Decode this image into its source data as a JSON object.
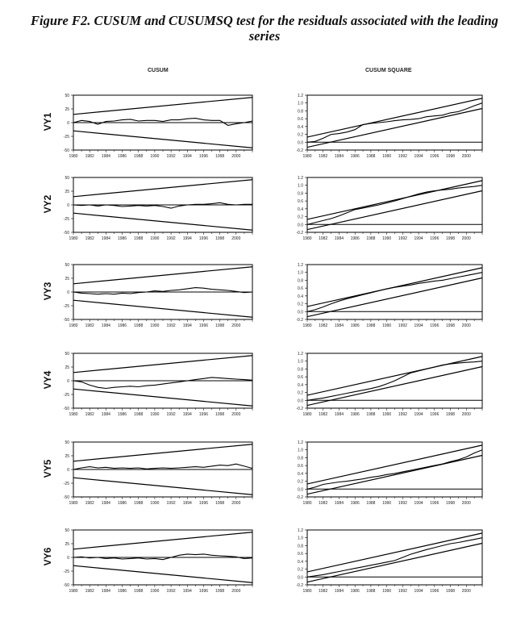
{
  "title": "Figure F2. CUSUM and CUSUMSQ test for the residuals associated with the leading series",
  "columns": {
    "left": "CUSUM",
    "right": "CUSUM SQUARE"
  },
  "chart_data": [
    {
      "type": "line",
      "panel": "CUSUM",
      "row_label": "VY1",
      "x_start": 1980,
      "x_end": 2002,
      "xticks": [
        1980,
        1982,
        1984,
        1986,
        1988,
        1990,
        1992,
        1994,
        1996,
        1998,
        2000
      ],
      "ylim": [
        -50,
        50
      ],
      "yticks": [
        -50,
        -25,
        0,
        25,
        50
      ],
      "bands": {
        "upper": [
          15,
          46
        ],
        "lower": [
          -15,
          -46
        ]
      },
      "values": [
        0,
        4,
        2,
        -3,
        2,
        3,
        5,
        6,
        3,
        4,
        4,
        2,
        5,
        5,
        7,
        8,
        5,
        4,
        4,
        -5,
        -2,
        0,
        3
      ]
    },
    {
      "type": "line",
      "panel": "CUSUM SQUARE",
      "row_label": "VY1",
      "x_start": 1980,
      "x_end": 2002,
      "xticks": [
        1980,
        1982,
        1984,
        1986,
        1988,
        1990,
        1992,
        1994,
        1996,
        1998,
        2000
      ],
      "ylim": [
        -0.2,
        1.2
      ],
      "yticks": [
        -0.2,
        0.0,
        0.2,
        0.4,
        0.6,
        0.8,
        1.0,
        1.2
      ],
      "bands": {
        "upper": [
          0.13,
          1.12
        ],
        "lower": [
          -0.13,
          0.86
        ]
      },
      "values": [
        0,
        0.02,
        0.1,
        0.2,
        0.22,
        0.26,
        0.32,
        0.45,
        0.48,
        0.5,
        0.52,
        0.55,
        0.57,
        0.58,
        0.6,
        0.65,
        0.67,
        0.69,
        0.75,
        0.78,
        0.85,
        0.93,
        1.0
      ]
    },
    {
      "type": "line",
      "panel": "CUSUM",
      "row_label": "VY2",
      "x_start": 1980,
      "x_end": 2002,
      "xticks": [
        1980,
        1982,
        1984,
        1986,
        1988,
        1990,
        1992,
        1994,
        1996,
        1998,
        2000
      ],
      "ylim": [
        -50,
        50
      ],
      "yticks": [
        -50,
        -25,
        0,
        25,
        50
      ],
      "bands": {
        "upper": [
          15,
          46
        ],
        "lower": [
          -15,
          -46
        ]
      },
      "values": [
        0,
        -1,
        0,
        -2,
        0,
        -1,
        -3,
        -2,
        -1,
        -2,
        -1,
        -3,
        -6,
        -2,
        0,
        1,
        1,
        2,
        4,
        1,
        0,
        1,
        1
      ]
    },
    {
      "type": "line",
      "panel": "CUSUM SQUARE",
      "row_label": "VY2",
      "x_start": 1980,
      "x_end": 2002,
      "xticks": [
        1980,
        1982,
        1984,
        1986,
        1988,
        1990,
        1992,
        1994,
        1996,
        1998,
        2000
      ],
      "ylim": [
        -0.2,
        1.2
      ],
      "yticks": [
        -0.2,
        0.0,
        0.2,
        0.4,
        0.6,
        0.8,
        1.0,
        1.2
      ],
      "bands": {
        "upper": [
          0.13,
          1.12
        ],
        "lower": [
          -0.13,
          0.86
        ]
      },
      "values": [
        0,
        0.05,
        0.1,
        0.15,
        0.22,
        0.3,
        0.38,
        0.42,
        0.46,
        0.5,
        0.55,
        0.6,
        0.66,
        0.72,
        0.78,
        0.83,
        0.86,
        0.88,
        0.9,
        0.93,
        0.95,
        0.97,
        1.0
      ]
    },
    {
      "type": "line",
      "panel": "CUSUM",
      "row_label": "VY3",
      "x_start": 1980,
      "x_end": 2002,
      "xticks": [
        1980,
        1982,
        1984,
        1986,
        1988,
        1990,
        1992,
        1994,
        1996,
        1998,
        2000
      ],
      "ylim": [
        -50,
        50
      ],
      "yticks": [
        -50,
        -25,
        0,
        25,
        50
      ],
      "bands": {
        "upper": [
          15,
          46
        ],
        "lower": [
          -15,
          -46
        ]
      },
      "values": [
        0,
        -2,
        -3,
        -4,
        -3,
        -4,
        -2,
        -3,
        -1,
        0,
        2,
        1,
        3,
        4,
        6,
        8,
        7,
        5,
        4,
        3,
        1,
        -1,
        0
      ]
    },
    {
      "type": "line",
      "panel": "CUSUM SQUARE",
      "row_label": "VY3",
      "x_start": 1980,
      "x_end": 2002,
      "xticks": [
        1980,
        1982,
        1984,
        1986,
        1988,
        1990,
        1992,
        1994,
        1996,
        1998,
        2000
      ],
      "ylim": [
        -0.2,
        1.2
      ],
      "yticks": [
        -0.2,
        0.0,
        0.2,
        0.4,
        0.6,
        0.8,
        1.0,
        1.2
      ],
      "bands": {
        "upper": [
          0.13,
          1.12
        ],
        "lower": [
          -0.13,
          0.86
        ]
      },
      "values": [
        0,
        0.05,
        0.12,
        0.2,
        0.27,
        0.33,
        0.38,
        0.43,
        0.48,
        0.53,
        0.58,
        0.62,
        0.65,
        0.68,
        0.72,
        0.75,
        0.78,
        0.8,
        0.84,
        0.88,
        0.92,
        0.96,
        1.0
      ]
    },
    {
      "type": "line",
      "panel": "CUSUM",
      "row_label": "VY4",
      "x_start": 1980,
      "x_end": 2002,
      "xticks": [
        1980,
        1982,
        1984,
        1986,
        1988,
        1990,
        1992,
        1994,
        1996,
        1998,
        2000
      ],
      "ylim": [
        -50,
        50
      ],
      "yticks": [
        -50,
        -25,
        0,
        25,
        50
      ],
      "bands": {
        "upper": [
          15,
          46
        ],
        "lower": [
          -15,
          -46
        ]
      },
      "values": [
        0,
        -2,
        -8,
        -12,
        -14,
        -12,
        -11,
        -10,
        -11,
        -9,
        -8,
        -6,
        -4,
        -2,
        0,
        2,
        4,
        6,
        5,
        4,
        3,
        2,
        1
      ]
    },
    {
      "type": "line",
      "panel": "CUSUM SQUARE",
      "row_label": "VY4",
      "x_start": 1980,
      "x_end": 2002,
      "xticks": [
        1980,
        1982,
        1984,
        1986,
        1988,
        1990,
        1992,
        1994,
        1996,
        1998,
        2000
      ],
      "ylim": [
        -0.2,
        1.2
      ],
      "yticks": [
        -0.2,
        0.0,
        0.2,
        0.4,
        0.6,
        0.8,
        1.0,
        1.2
      ],
      "bands": {
        "upper": [
          0.13,
          1.12
        ],
        "lower": [
          -0.13,
          0.86
        ]
      },
      "values": [
        0,
        0.03,
        0.06,
        0.1,
        0.14,
        0.18,
        0.22,
        0.26,
        0.3,
        0.35,
        0.42,
        0.5,
        0.6,
        0.7,
        0.75,
        0.8,
        0.85,
        0.9,
        0.93,
        0.95,
        0.97,
        0.98,
        1.0
      ]
    },
    {
      "type": "line",
      "panel": "CUSUM",
      "row_label": "VY5",
      "x_start": 1980,
      "x_end": 2002,
      "xticks": [
        1980,
        1982,
        1984,
        1986,
        1988,
        1990,
        1992,
        1994,
        1996,
        1998,
        2000
      ],
      "ylim": [
        -50,
        50
      ],
      "yticks": [
        -50,
        -25,
        0,
        25,
        50
      ],
      "bands": {
        "upper": [
          15,
          46
        ],
        "lower": [
          -15,
          -46
        ]
      },
      "values": [
        0,
        3,
        5,
        3,
        4,
        2,
        3,
        2,
        3,
        1,
        2,
        3,
        2,
        3,
        4,
        5,
        4,
        6,
        8,
        7,
        10,
        6,
        2
      ]
    },
    {
      "type": "line",
      "panel": "CUSUM SQUARE",
      "row_label": "VY5",
      "x_start": 1980,
      "x_end": 2002,
      "xticks": [
        1980,
        1982,
        1984,
        1986,
        1988,
        1990,
        1992,
        1994,
        1996,
        1998,
        2000
      ],
      "ylim": [
        -0.2,
        1.2
      ],
      "yticks": [
        -0.2,
        0.0,
        0.2,
        0.4,
        0.6,
        0.8,
        1.0,
        1.2
      ],
      "bands": {
        "upper": [
          0.13,
          1.12
        ],
        "lower": [
          -0.13,
          0.86
        ]
      },
      "values": [
        0,
        0.05,
        0.12,
        0.15,
        0.18,
        0.2,
        0.23,
        0.26,
        0.3,
        0.33,
        0.37,
        0.4,
        0.44,
        0.48,
        0.52,
        0.56,
        0.6,
        0.64,
        0.7,
        0.75,
        0.82,
        0.92,
        1.0
      ]
    },
    {
      "type": "line",
      "panel": "CUSUM",
      "row_label": "VY6",
      "x_start": 1980,
      "x_end": 2002,
      "xticks": [
        1980,
        1982,
        1984,
        1986,
        1988,
        1990,
        1992,
        1994,
        1996,
        1998,
        2000
      ],
      "ylim": [
        -50,
        50
      ],
      "yticks": [
        -50,
        -25,
        0,
        25,
        50
      ],
      "bands": {
        "upper": [
          15,
          46
        ],
        "lower": [
          -15,
          -46
        ]
      },
      "values": [
        0,
        1,
        -1,
        0,
        -2,
        -1,
        -3,
        -2,
        -1,
        -3,
        -2,
        -4,
        0,
        4,
        6,
        5,
        6,
        4,
        3,
        2,
        1,
        -2,
        -1
      ]
    },
    {
      "type": "line",
      "panel": "CUSUM SQUARE",
      "row_label": "VY6",
      "x_start": 1980,
      "x_end": 2002,
      "xticks": [
        1980,
        1982,
        1984,
        1986,
        1988,
        1990,
        1992,
        1994,
        1996,
        1998,
        2000
      ],
      "ylim": [
        -0.2,
        1.2
      ],
      "yticks": [
        -0.2,
        0.0,
        0.2,
        0.4,
        0.6,
        0.8,
        1.0,
        1.2
      ],
      "bands": {
        "upper": [
          0.13,
          1.12
        ],
        "lower": [
          -0.13,
          0.86
        ]
      },
      "values": [
        0,
        0.03,
        0.06,
        0.1,
        0.14,
        0.18,
        0.22,
        0.26,
        0.3,
        0.34,
        0.38,
        0.42,
        0.5,
        0.58,
        0.64,
        0.7,
        0.75,
        0.8,
        0.85,
        0.88,
        0.92,
        0.96,
        1.0
      ]
    }
  ]
}
